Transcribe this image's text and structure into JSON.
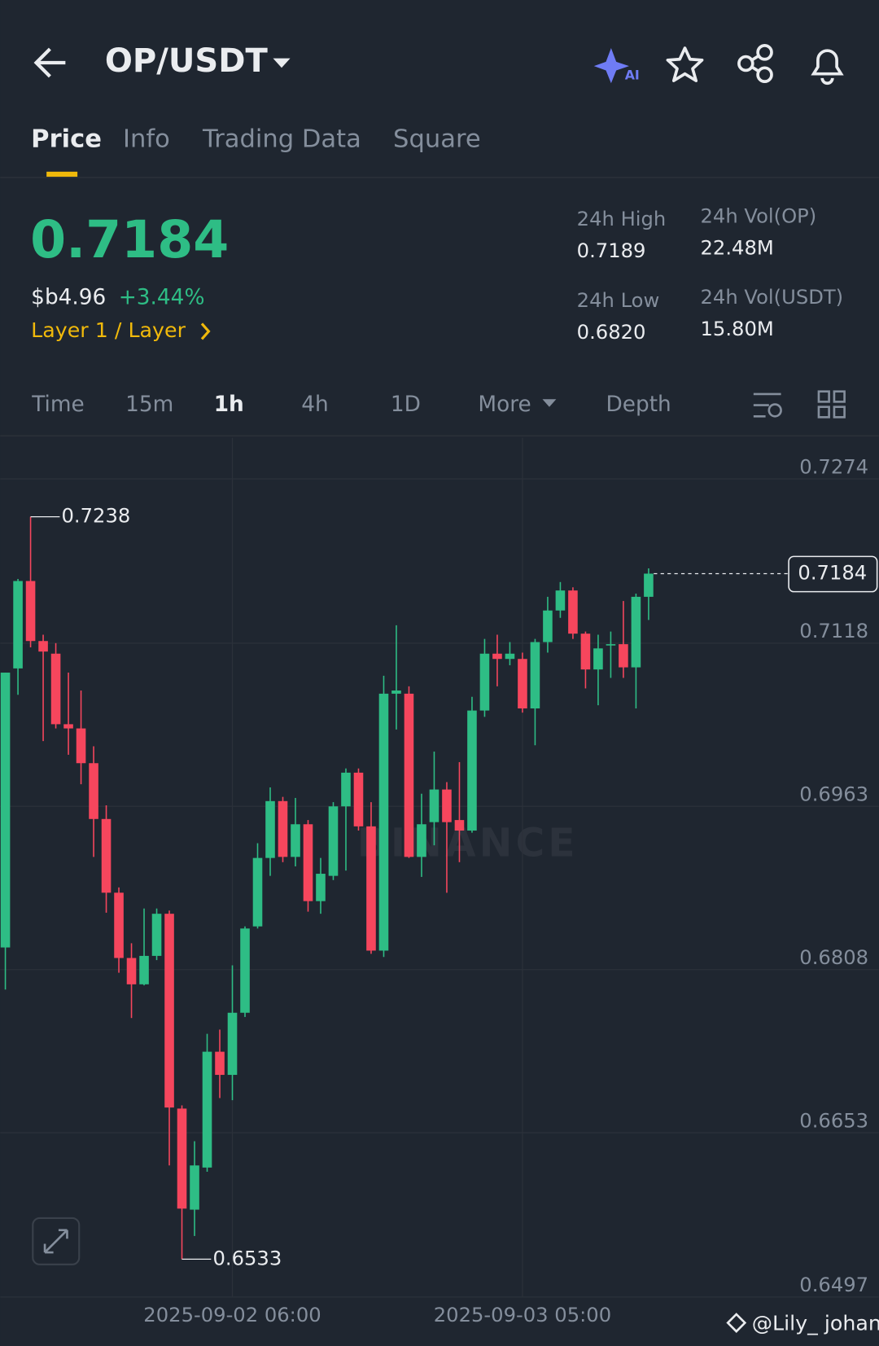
{
  "header": {
    "symbol": "OP/USDT"
  },
  "tabs": [
    "Price",
    "Info",
    "Trading Data",
    "Square"
  ],
  "price": {
    "last": "0.7184",
    "fiat": "$b4.96",
    "change": "+3.44%",
    "sector": "Layer 1 / Layer"
  },
  "stats": [
    {
      "label": "24h High",
      "value": "0.7189"
    },
    {
      "label": "24h Vol(OP)",
      "value": "22.48M"
    },
    {
      "label": "24h Low",
      "value": "0.6820"
    },
    {
      "label": "24h Vol(USDT)",
      "value": "15.80M"
    }
  ],
  "timeframes": [
    "Time",
    "15m",
    "1h",
    "4h",
    "1D",
    "More",
    "Depth"
  ],
  "chart_data": {
    "type": "candlestick",
    "up_color": "#2ebd85",
    "down_color": "#f6465d",
    "grid": true,
    "watermark": "BINANCE",
    "categories": [
      null,
      null,
      null,
      null,
      null,
      null,
      null,
      null,
      null,
      null,
      null,
      null,
      null,
      null,
      null,
      null,
      null,
      null,
      "2025-09-02 06:00",
      null,
      null,
      null,
      null,
      null,
      null,
      null,
      null,
      null,
      null,
      null,
      null,
      null,
      null,
      null,
      null,
      null,
      null,
      null,
      null,
      null,
      null,
      "2025-09-03 05:00",
      null,
      null,
      null,
      null,
      null,
      null,
      null,
      null,
      null,
      null
    ],
    "open": [
      0.6829,
      0.7094,
      0.7177,
      0.712,
      0.7108,
      0.7041,
      0.7037,
      0.7004,
      0.6951,
      0.6881,
      0.6819,
      0.6794,
      0.6821,
      0.6861,
      0.6676,
      0.658,
      0.662,
      0.673,
      0.6708,
      0.6767,
      0.6849,
      0.6914,
      0.6968,
      0.6915,
      0.6946,
      0.6873,
      0.6897,
      0.6963,
      0.6995,
      0.6944,
      0.6826,
      0.707,
      0.707,
      0.6915,
      0.6948,
      0.6979,
      0.695,
      0.694,
      0.7054,
      0.7108,
      0.7103,
      0.7103,
      0.7056,
      0.7119,
      0.7149,
      0.7168,
      0.7127,
      0.7093,
      0.7116,
      0.7117,
      0.7095,
      0.7162
    ],
    "high": [
      0.709,
      0.7179,
      0.7238,
      0.7126,
      0.7118,
      0.709,
      0.7073,
      0.702,
      0.6964,
      0.6886,
      0.6833,
      0.6866,
      0.6866,
      0.6864,
      0.6679,
      0.6645,
      0.6747,
      0.6751,
      0.6812,
      0.6849,
      0.6928,
      0.6981,
      0.6972,
      0.6971,
      0.695,
      0.6914,
      0.6967,
      0.6999,
      0.6999,
      0.6967,
      0.7087,
      0.7135,
      0.7077,
      0.6975,
      0.7015,
      0.6986,
      0.7005,
      0.7067,
      0.7122,
      0.7126,
      0.7119,
      0.7109,
      0.7122,
      0.7162,
      0.7176,
      0.7171,
      0.7129,
      0.7126,
      0.7129,
      0.7158,
      0.7165,
      0.7189
    ],
    "low": [
      0.6789,
      0.7069,
      0.7114,
      0.7025,
      0.7037,
      0.7012,
      0.6984,
      0.6915,
      0.6862,
      0.6805,
      0.6762,
      0.6793,
      0.6817,
      0.6622,
      0.6533,
      0.6555,
      0.6616,
      0.6686,
      0.6684,
      0.6763,
      0.6847,
      0.6897,
      0.691,
      0.6906,
      0.6863,
      0.6861,
      0.6893,
      0.6902,
      0.694,
      0.6823,
      0.682,
      0.7036,
      0.6914,
      0.6896,
      0.6926,
      0.6881,
      0.691,
      0.6938,
      0.7048,
      0.7077,
      0.7097,
      0.7052,
      0.7021,
      0.7109,
      0.7142,
      0.7122,
      0.7075,
      0.7059,
      0.7085,
      0.7085,
      0.7056,
      0.714
    ],
    "close": [
      0.709,
      0.7177,
      0.712,
      0.711,
      0.7041,
      0.7037,
      0.7004,
      0.6951,
      0.6881,
      0.6819,
      0.6794,
      0.6821,
      0.6861,
      0.6677,
      0.6581,
      0.6622,
      0.673,
      0.6708,
      0.6767,
      0.6847,
      0.6914,
      0.6968,
      0.6915,
      0.6946,
      0.6873,
      0.6899,
      0.6963,
      0.6995,
      0.6944,
      0.6826,
      0.707,
      0.7073,
      0.6915,
      0.6946,
      0.6979,
      0.6948,
      0.694,
      0.7054,
      0.7108,
      0.7103,
      0.7108,
      0.7056,
      0.7119,
      0.7149,
      0.7168,
      0.7127,
      0.7093,
      0.7113,
      0.7117,
      0.7095,
      0.7162,
      0.7184
    ],
    "ylim": [
      0.6497,
      0.7313
    ],
    "yticks": [
      0.7274,
      0.7118,
      0.6963,
      0.6808,
      0.6653,
      0.6497
    ]
  },
  "footer": "@Lily_ johan"
}
